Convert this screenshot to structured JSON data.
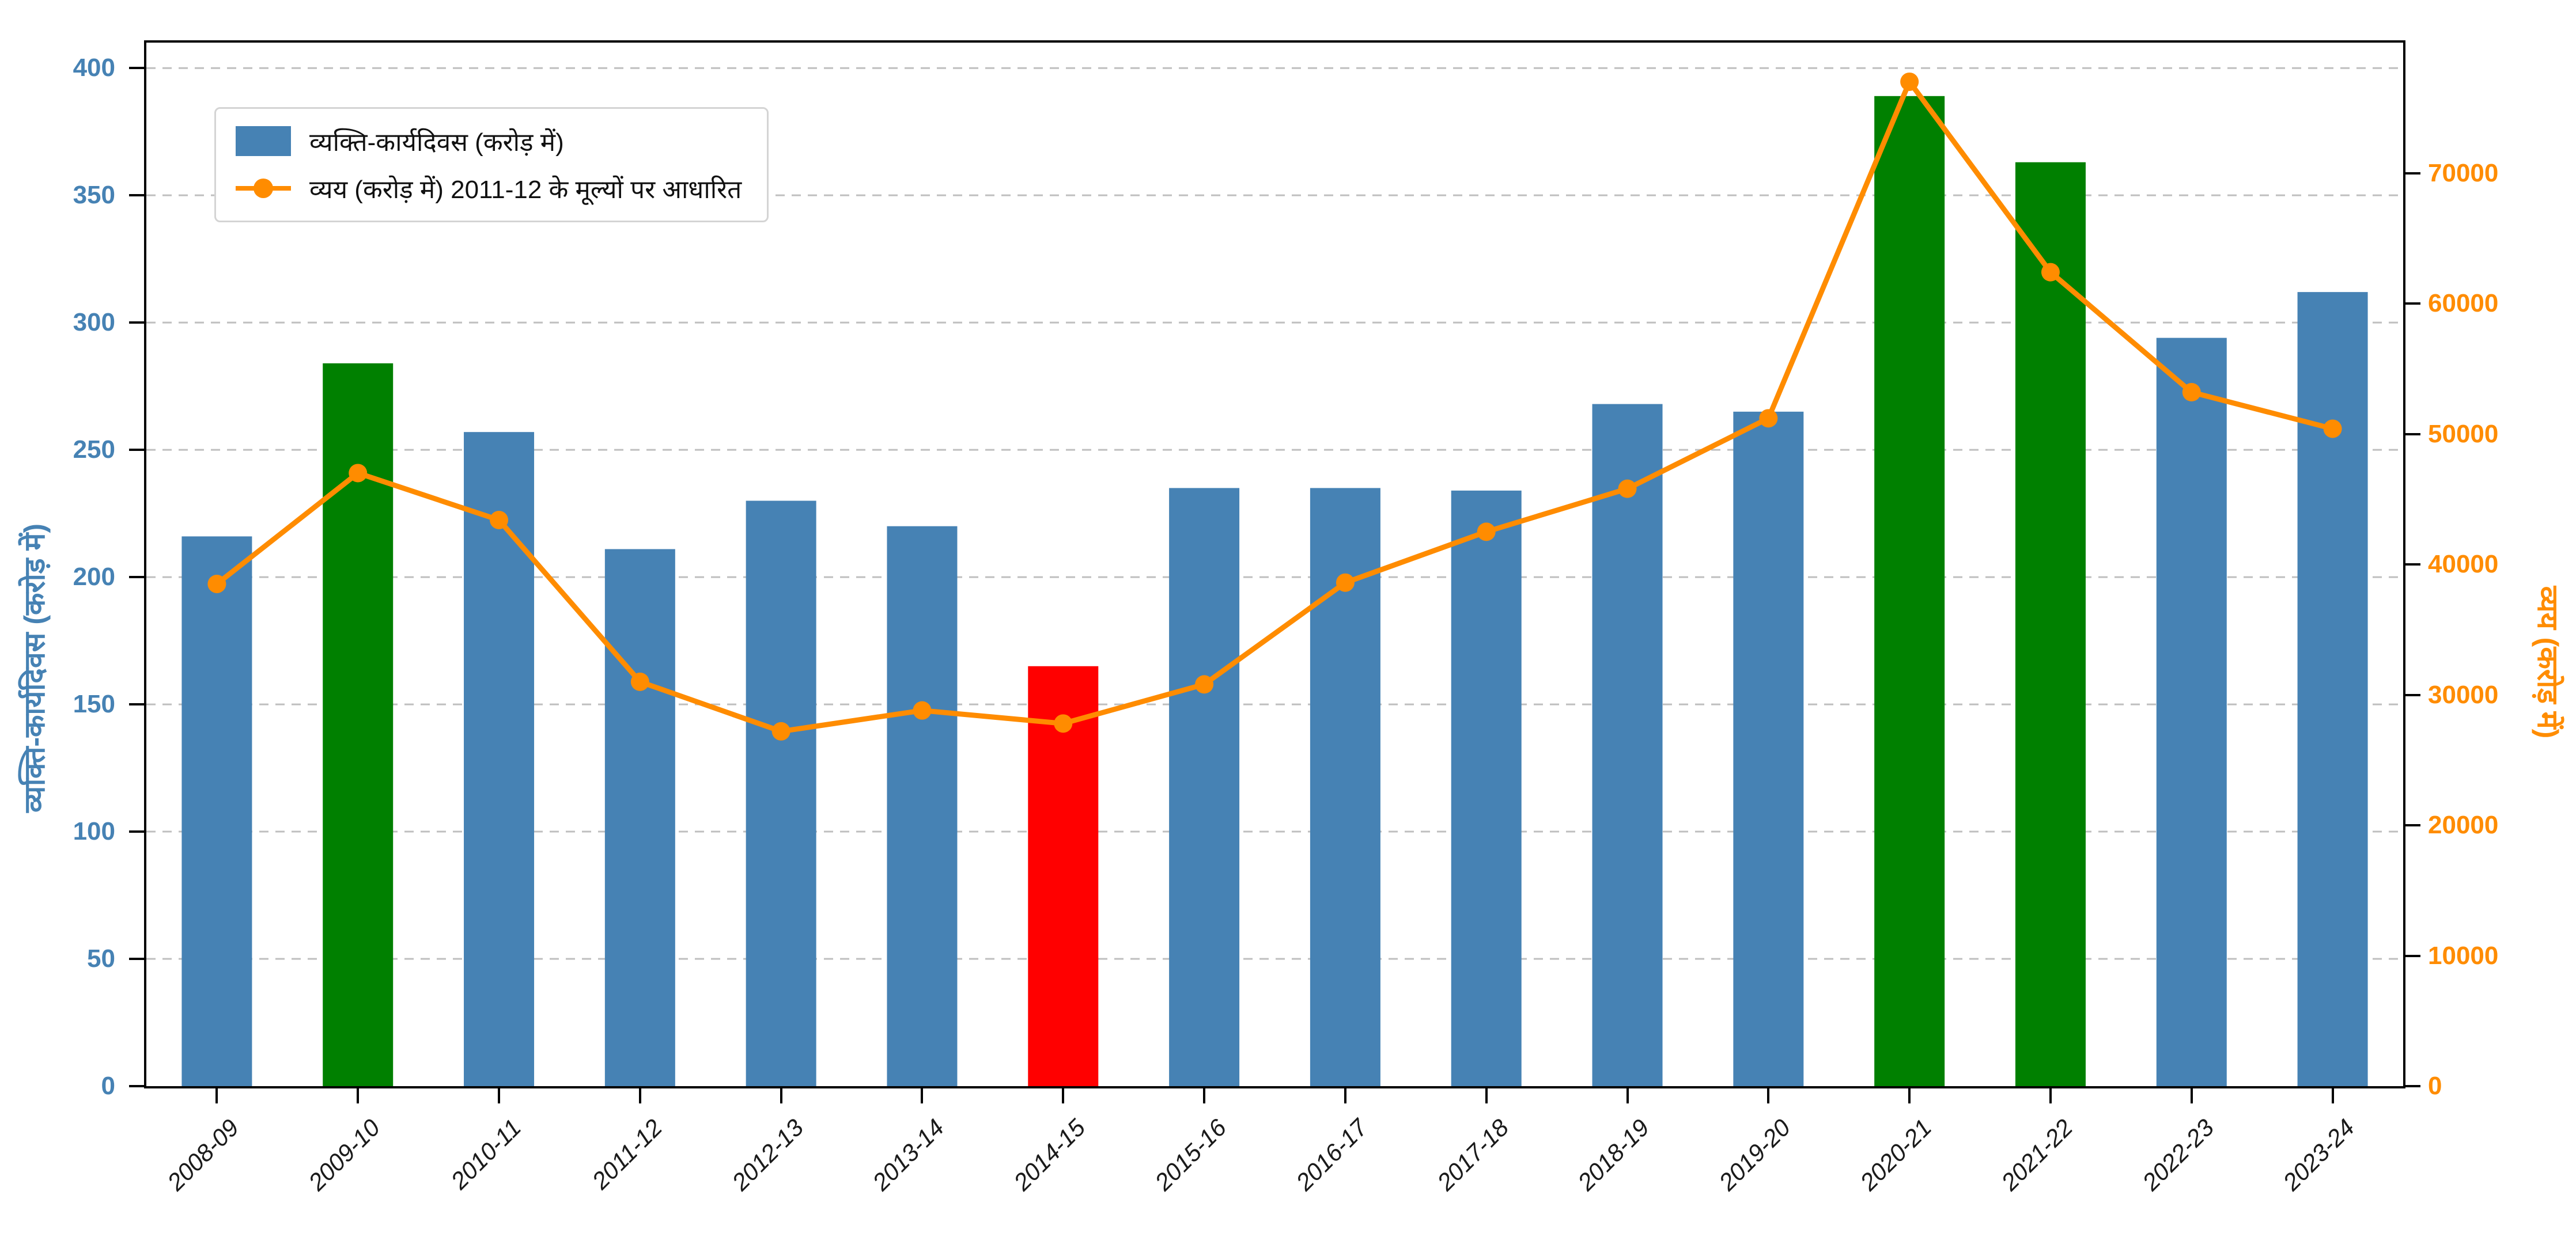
{
  "chart_data": {
    "type": "bar+line",
    "categories": [
      "2008-09",
      "2009-10",
      "2010-11",
      "2011-12",
      "2012-13",
      "2013-14",
      "2014-15",
      "2015-16",
      "2016-17",
      "2017-18",
      "2018-19",
      "2019-20",
      "2020-21",
      "2021-22",
      "2022-23",
      "2023-24"
    ],
    "series": [
      {
        "name": "व्यक्ति-कार्यदिवस (करोड़ में)",
        "type": "bar",
        "axis": "left",
        "values": [
          216,
          284,
          257,
          211,
          230,
          220,
          165,
          235,
          235,
          234,
          268,
          265,
          389,
          363,
          294,
          312
        ],
        "bar_colors": [
          "#4682b4",
          "#008000",
          "#4682b4",
          "#4682b4",
          "#4682b4",
          "#4682b4",
          "#ff0000",
          "#4682b4",
          "#4682b4",
          "#4682b4",
          "#4682b4",
          "#4682b4",
          "#008000",
          "#008000",
          "#4682b4",
          "#4682b4"
        ]
      },
      {
        "name": "व्यय (करोड़ में) 2011-12 के मूल्यों पर आधारित",
        "type": "line",
        "axis": "right",
        "values": [
          38500,
          47000,
          43400,
          31000,
          27200,
          28800,
          27800,
          30800,
          38600,
          42500,
          45800,
          51200,
          77000,
          62400,
          53200,
          50400
        ],
        "color": "#ff8c00"
      }
    ],
    "left_axis": {
      "label": "व्यक्ति-कार्यदिवस (करोड़ में)",
      "tick_labels": [
        "0",
        "50",
        "100",
        "150",
        "200",
        "250",
        "300",
        "350",
        "400"
      ],
      "tick_values": [
        0,
        50,
        100,
        150,
        200,
        250,
        300,
        350,
        400
      ],
      "range_max": 410,
      "tick_color": "#4682b4"
    },
    "right_axis": {
      "label": "व्यय (करोड़ में)",
      "tick_labels": [
        "0",
        "10000",
        "20000",
        "30000",
        "40000",
        "50000",
        "60000",
        "70000"
      ],
      "tick_values": [
        0,
        10000,
        20000,
        30000,
        40000,
        50000,
        60000,
        70000
      ],
      "range_max": 80000,
      "tick_color": "#ff8c00"
    },
    "legend": {
      "position": "top-left",
      "items": [
        "व्यक्ति-कार्यदिवस (करोड़ में)",
        "व्यय (करोड़ में) 2011-12 के मूल्यों पर आधारित"
      ]
    },
    "grid": {
      "horizontal": true,
      "style": "dashed",
      "color": "#bfbfbf"
    },
    "colors": {
      "bar_default": "#4682b4",
      "bar_highlight_green": "#008000",
      "bar_highlight_red": "#ff0000",
      "line": "#ff8c00",
      "spine": "#000000",
      "background": "#ffffff"
    }
  }
}
